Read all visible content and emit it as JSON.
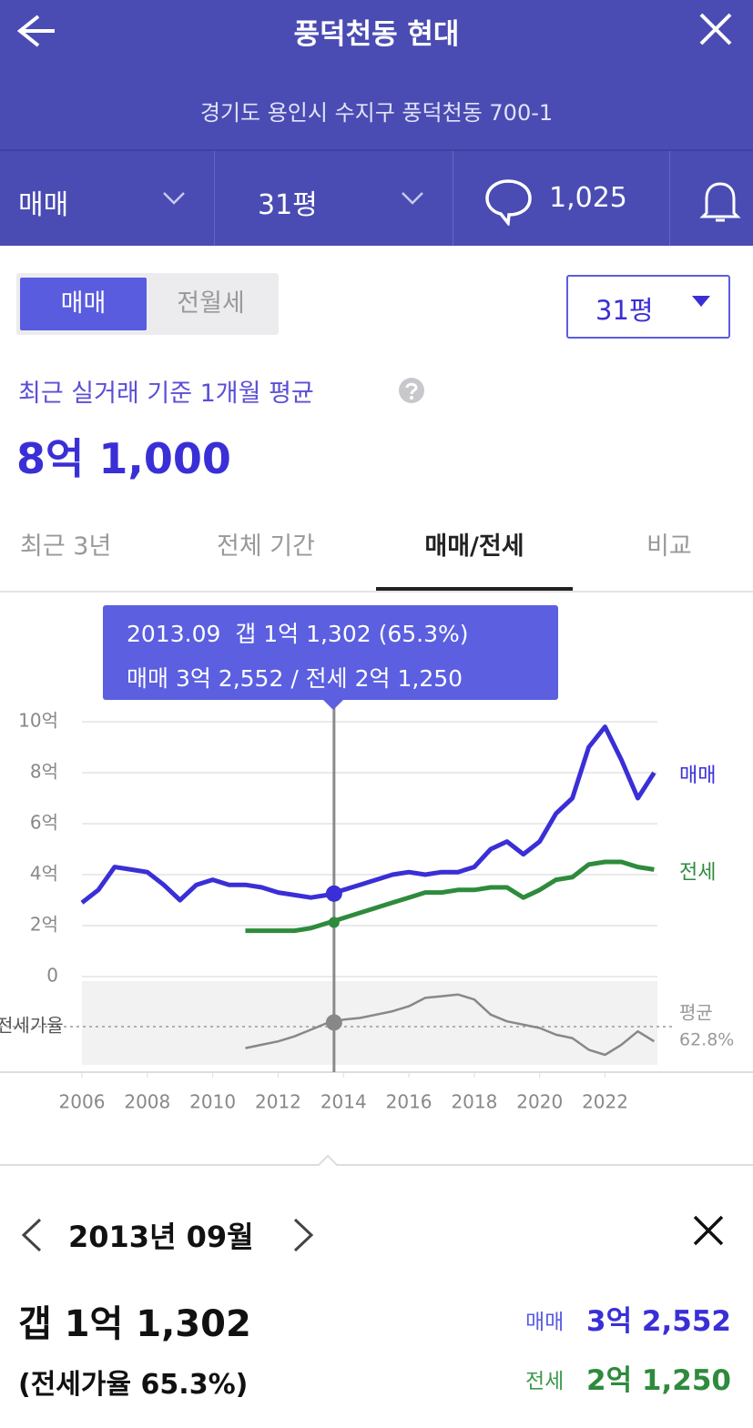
{
  "header": {
    "title": "풍덕천동 현대",
    "address": "경기도 용인시 수지구 풍덕천동 700-1"
  },
  "filters": {
    "deal_type": "매매",
    "size": "31평",
    "comments": "1,025"
  },
  "toggle": [
    "매매",
    "전월세"
  ],
  "size_select": "31평",
  "summary": {
    "label": "최근 실거래 기준 1개월 평균",
    "price": "8억 1,000"
  },
  "tabs": [
    "최근 3년",
    "전체 기간",
    "매매/전세",
    "비교"
  ],
  "chart_data": {
    "type": "line",
    "x": [
      2006.0,
      2006.5,
      2007.0,
      2007.5,
      2008.0,
      2008.5,
      2009.0,
      2009.5,
      2010.0,
      2010.5,
      2011.0,
      2011.5,
      2012.0,
      2012.5,
      2013.0,
      2013.5,
      2014.0,
      2014.5,
      2015.0,
      2015.5,
      2016.0,
      2016.5,
      2017.0,
      2017.5,
      2018.0,
      2018.5,
      2019.0,
      2019.5,
      2020.0,
      2020.5,
      2021.0,
      2021.5,
      2022.0,
      2022.5,
      2023.0,
      2023.5
    ],
    "xlim": [
      2006,
      2023.6
    ],
    "xticks": [
      2006,
      2008,
      2010,
      2012,
      2014,
      2016,
      2018,
      2020,
      2022
    ],
    "ylim": [
      0,
      10
    ],
    "yticks": [
      0,
      {
        "value": 2,
        "label": "2억"
      },
      {
        "value": 4,
        "label": "4억"
      },
      {
        "value": 6,
        "label": "6억"
      },
      {
        "value": 8,
        "label": "8억"
      },
      {
        "value": 10,
        "label": "10억"
      }
    ],
    "grid": true,
    "series": [
      {
        "name": "매매",
        "color": "#3a2fd6",
        "values": [
          2.9,
          3.4,
          4.3,
          4.2,
          4.1,
          3.6,
          3.0,
          3.6,
          3.8,
          3.6,
          3.6,
          3.5,
          3.3,
          3.2,
          3.1,
          3.2,
          3.4,
          3.6,
          3.8,
          4.0,
          4.1,
          4.0,
          4.1,
          4.1,
          4.3,
          5.0,
          5.3,
          4.8,
          5.3,
          6.4,
          7.0,
          9.0,
          9.8,
          8.5,
          7.0,
          8.0
        ]
      },
      {
        "name": "전세",
        "color": "#2e8b3c",
        "values": [
          null,
          null,
          null,
          null,
          null,
          null,
          null,
          null,
          null,
          null,
          1.8,
          1.8,
          1.8,
          1.8,
          1.9,
          2.1,
          2.3,
          2.5,
          2.7,
          2.9,
          3.1,
          3.3,
          3.3,
          3.4,
          3.4,
          3.5,
          3.5,
          3.1,
          3.4,
          3.8,
          3.9,
          4.4,
          4.5,
          4.5,
          4.3,
          4.2
        ]
      }
    ],
    "ratio": {
      "name": "전세가율",
      "color": "#888888",
      "ylim": [
        40,
        90
      ],
      "values": [
        null,
        null,
        null,
        null,
        null,
        null,
        null,
        null,
        null,
        null,
        50,
        52,
        54,
        57,
        61,
        65,
        67,
        68,
        70,
        72,
        75,
        80,
        81,
        82,
        79,
        70,
        66,
        64,
        62,
        58,
        56,
        49,
        46,
        52,
        60,
        54
      ],
      "average": {
        "name": "평균",
        "value": 62.8,
        "label": "62.8%"
      }
    },
    "cursor": {
      "x": 2013.71,
      "values": [
        3.2552,
        2.125
      ],
      "ratio": 65.3
    },
    "tooltip": [
      "2013.09  갭 1억 1,302 (65.3%)",
      "매매 3억 2,552 / 전세 2억 1,250"
    ]
  },
  "detail": {
    "date": "2013년 09월",
    "gap": "갭 1억 1,302",
    "ratio": "(전세가율 65.3%)",
    "sale_label": "매매",
    "sale": "3억 2,552",
    "jeonse_label": "전세",
    "jeonse": "2억 1,250"
  }
}
